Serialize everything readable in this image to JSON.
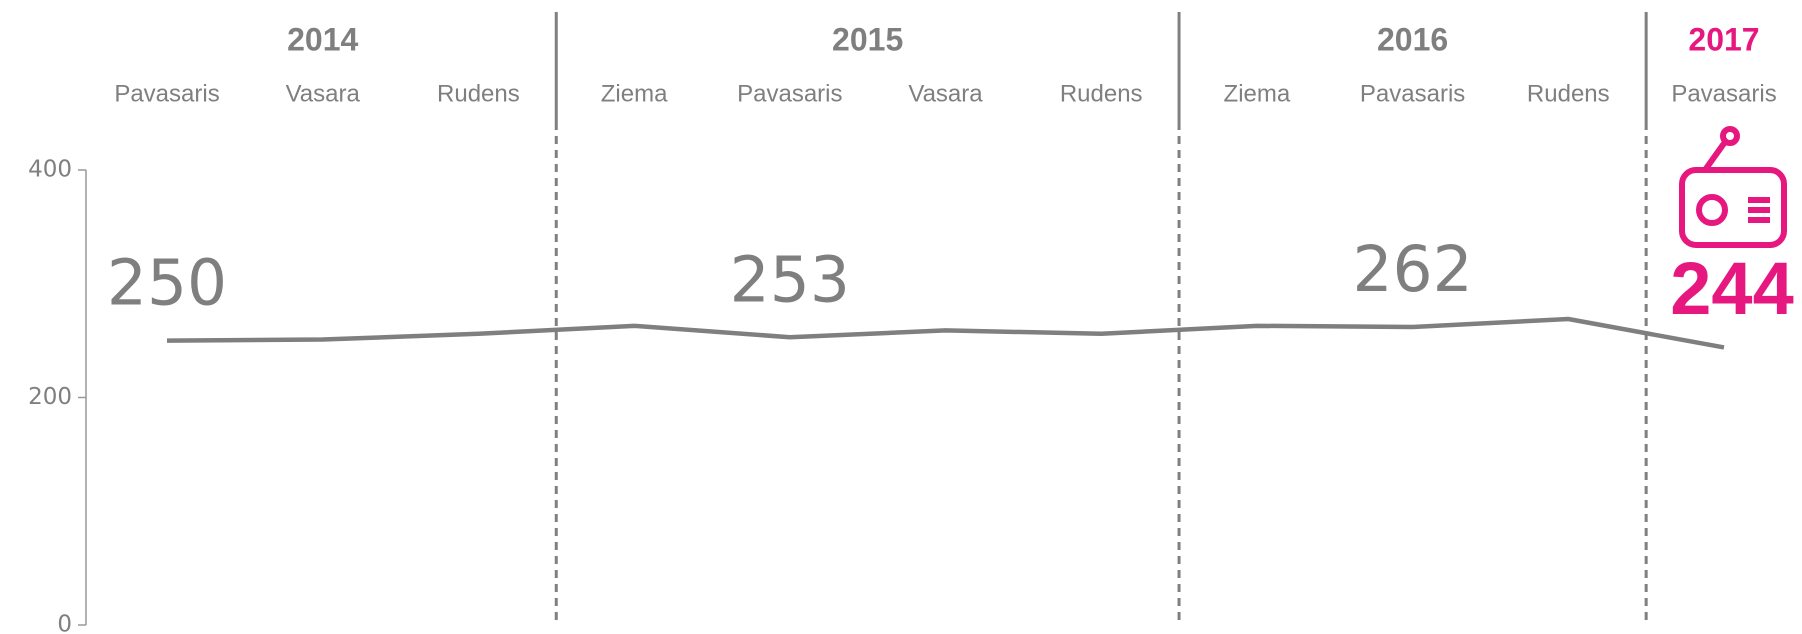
{
  "chart_data": {
    "type": "line",
    "categories": [
      "Pavasaris",
      "Vasara",
      "Rudens",
      "Ziema",
      "Pavasaris",
      "Vasara",
      "Rudens",
      "Ziema",
      "Pavasaris",
      "Rudens",
      "Pavasaris"
    ],
    "groups": [
      {
        "name": "2014",
        "size": 3
      },
      {
        "name": "2015",
        "size": 4
      },
      {
        "name": "2016",
        "size": 3
      },
      {
        "name": "2017",
        "size": 1
      }
    ],
    "series": [
      {
        "name": "Radio",
        "color": "#7f7f7f",
        "values": [
          250,
          251,
          256,
          263,
          253,
          259,
          256,
          263,
          262,
          269,
          244
        ]
      }
    ],
    "labeled_points": [
      0,
      4,
      8,
      10
    ],
    "highlight": {
      "group": 3,
      "point": 10,
      "color": "#e6177f"
    },
    "ylim": [
      0,
      400
    ],
    "yticks": [
      0,
      200,
      400
    ]
  }
}
